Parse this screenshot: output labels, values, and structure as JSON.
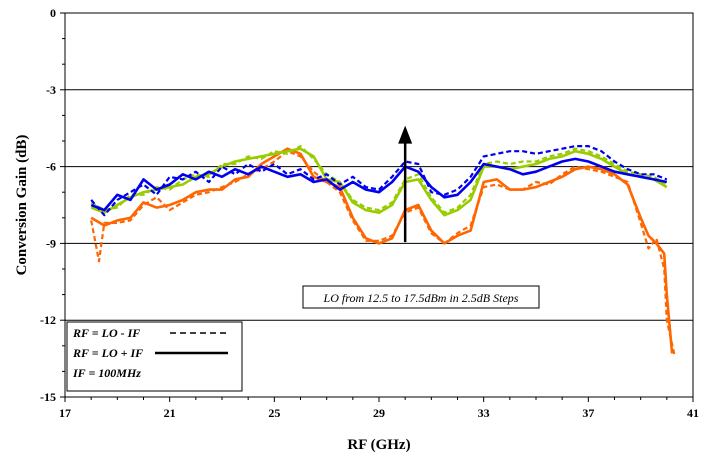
{
  "chart_data": {
    "type": "line",
    "xlabel": "RF (GHz)",
    "ylabel": "Conversion Gain (dB)",
    "xlim": [
      17,
      41
    ],
    "ylim": [
      -15,
      0
    ],
    "x_ticks": [
      17,
      21,
      25,
      29,
      33,
      37,
      41
    ],
    "y_ticks": [
      0,
      -3,
      -6,
      -9,
      -12,
      -15
    ],
    "grid": "horizontal major lines",
    "annotation": "LO from 12.5 to 17.5dBm in 2.5dB Steps",
    "arrow": {
      "x": 30,
      "y_from": -8.95,
      "y_to": -4.4
    },
    "legend": {
      "position": "bottom-left",
      "entries": [
        "RF = LO - IF",
        "RF = LO + IF",
        "IF = 100MHz"
      ]
    },
    "colors": {
      "orange": "#ff6600",
      "green": "#99cc00",
      "blue": "#0000ee"
    },
    "series": [
      {
        "color": "orange",
        "style": "solid",
        "points": [
          [
            18,
            -8.0
          ],
          [
            18.5,
            -8.3
          ],
          [
            19,
            -8.1
          ],
          [
            19.5,
            -8.0
          ],
          [
            20,
            -7.4
          ],
          [
            20.5,
            -7.6
          ],
          [
            21,
            -7.5
          ],
          [
            21.5,
            -7.3
          ],
          [
            22,
            -7.0
          ],
          [
            22.5,
            -6.9
          ],
          [
            23,
            -6.9
          ],
          [
            23.5,
            -6.5
          ],
          [
            24,
            -6.4
          ],
          [
            24.5,
            -5.9
          ],
          [
            25,
            -5.6
          ],
          [
            25.5,
            -5.3
          ],
          [
            26,
            -5.5
          ],
          [
            26.5,
            -6.4
          ],
          [
            27,
            -6.6
          ],
          [
            27.5,
            -6.8
          ],
          [
            28,
            -8.0
          ],
          [
            28.5,
            -8.8
          ],
          [
            29,
            -9.0
          ],
          [
            29.5,
            -8.8
          ],
          [
            30,
            -7.7
          ],
          [
            30.5,
            -7.5
          ],
          [
            31,
            -8.5
          ],
          [
            31.5,
            -9.0
          ],
          [
            32,
            -8.7
          ],
          [
            32.5,
            -8.5
          ],
          [
            33,
            -6.6
          ],
          [
            33.5,
            -6.5
          ],
          [
            34,
            -6.9
          ],
          [
            34.5,
            -6.9
          ],
          [
            35,
            -6.8
          ],
          [
            35.5,
            -6.6
          ],
          [
            36,
            -6.4
          ],
          [
            36.5,
            -6.1
          ],
          [
            37,
            -6.0
          ],
          [
            37.5,
            -6.1
          ],
          [
            38,
            -6.3
          ],
          [
            38.5,
            -6.7
          ],
          [
            39,
            -8.0
          ],
          [
            39.3,
            -8.7
          ],
          [
            39.6,
            -9.0
          ],
          [
            39.9,
            -9.4
          ],
          [
            40,
            -11.0
          ],
          [
            40.2,
            -13.3
          ]
        ]
      },
      {
        "color": "orange",
        "style": "dashed",
        "points": [
          [
            18,
            -8.1
          ],
          [
            18.3,
            -9.7
          ],
          [
            18.5,
            -8.2
          ],
          [
            19,
            -8.2
          ],
          [
            19.5,
            -8.1
          ],
          [
            20,
            -7.5
          ],
          [
            20.5,
            -7.2
          ],
          [
            21,
            -7.7
          ],
          [
            21.5,
            -7.4
          ],
          [
            22,
            -7.1
          ],
          [
            22.5,
            -7.0
          ],
          [
            23,
            -6.8
          ],
          [
            23.5,
            -6.6
          ],
          [
            24,
            -6.3
          ],
          [
            24.5,
            -6.1
          ],
          [
            25,
            -5.8
          ],
          [
            25.5,
            -5.4
          ],
          [
            26,
            -5.6
          ],
          [
            26.5,
            -6.2
          ],
          [
            27,
            -6.6
          ],
          [
            27.5,
            -7.0
          ],
          [
            28,
            -8.1
          ],
          [
            28.5,
            -8.9
          ],
          [
            29,
            -8.9
          ],
          [
            29.5,
            -8.7
          ],
          [
            30,
            -7.8
          ],
          [
            30.5,
            -7.6
          ],
          [
            31,
            -8.6
          ],
          [
            31.5,
            -9.0
          ],
          [
            32,
            -8.6
          ],
          [
            32.5,
            -8.3
          ],
          [
            33,
            -6.8
          ],
          [
            33.5,
            -6.7
          ],
          [
            34,
            -6.9
          ],
          [
            34.5,
            -6.9
          ],
          [
            35,
            -6.6
          ],
          [
            35.5,
            -6.7
          ],
          [
            36,
            -6.3
          ],
          [
            36.5,
            -6.0
          ],
          [
            37,
            -6.1
          ],
          [
            37.5,
            -6.2
          ],
          [
            38,
            -6.4
          ],
          [
            38.5,
            -6.6
          ],
          [
            39,
            -8.2
          ],
          [
            39.3,
            -9.2
          ],
          [
            39.6,
            -8.8
          ],
          [
            39.9,
            -10.0
          ],
          [
            40,
            -12.0
          ],
          [
            40.3,
            -13.4
          ]
        ]
      },
      {
        "color": "green",
        "style": "solid",
        "points": [
          [
            18,
            -7.6
          ],
          [
            18.5,
            -7.8
          ],
          [
            19,
            -7.5
          ],
          [
            19.5,
            -7.2
          ],
          [
            20,
            -7.0
          ],
          [
            20.5,
            -6.9
          ],
          [
            21,
            -6.8
          ],
          [
            21.5,
            -6.7
          ],
          [
            22,
            -6.4
          ],
          [
            22.5,
            -6.3
          ],
          [
            23,
            -6.0
          ],
          [
            23.5,
            -5.8
          ],
          [
            24,
            -5.7
          ],
          [
            24.5,
            -5.6
          ],
          [
            25,
            -5.5
          ],
          [
            25.5,
            -5.4
          ],
          [
            26,
            -5.3
          ],
          [
            26.5,
            -5.6
          ],
          [
            27,
            -6.5
          ],
          [
            27.5,
            -6.6
          ],
          [
            28,
            -7.4
          ],
          [
            28.5,
            -7.7
          ],
          [
            29,
            -7.8
          ],
          [
            29.5,
            -7.5
          ],
          [
            30,
            -6.6
          ],
          [
            30.5,
            -6.5
          ],
          [
            31,
            -7.3
          ],
          [
            31.5,
            -7.9
          ],
          [
            32,
            -7.7
          ],
          [
            32.5,
            -7.3
          ],
          [
            33,
            -6.0
          ],
          [
            33.5,
            -6.0
          ],
          [
            34,
            -6.1
          ],
          [
            34.5,
            -6.0
          ],
          [
            35,
            -5.9
          ],
          [
            35.5,
            -5.7
          ],
          [
            36,
            -5.6
          ],
          [
            36.5,
            -5.4
          ],
          [
            37,
            -5.5
          ],
          [
            37.5,
            -5.7
          ],
          [
            38,
            -6.0
          ],
          [
            38.5,
            -6.3
          ],
          [
            39,
            -6.4
          ],
          [
            39.5,
            -6.5
          ],
          [
            40,
            -6.8
          ]
        ]
      },
      {
        "color": "green",
        "style": "dashed",
        "points": [
          [
            18,
            -7.4
          ],
          [
            18.5,
            -7.7
          ],
          [
            19,
            -7.6
          ],
          [
            19.5,
            -7.1
          ],
          [
            20,
            -7.1
          ],
          [
            20.5,
            -6.8
          ],
          [
            21,
            -6.9
          ],
          [
            21.5,
            -6.5
          ],
          [
            22,
            -6.3
          ],
          [
            22.5,
            -6.4
          ],
          [
            23,
            -5.9
          ],
          [
            23.5,
            -5.9
          ],
          [
            24,
            -5.6
          ],
          [
            24.5,
            -5.7
          ],
          [
            25,
            -5.4
          ],
          [
            25.5,
            -5.5
          ],
          [
            26,
            -5.2
          ],
          [
            26.5,
            -5.7
          ],
          [
            27,
            -6.3
          ],
          [
            27.5,
            -6.6
          ],
          [
            28,
            -7.3
          ],
          [
            28.5,
            -7.6
          ],
          [
            29,
            -7.7
          ],
          [
            29.5,
            -7.4
          ],
          [
            30,
            -6.5
          ],
          [
            30.5,
            -6.3
          ],
          [
            31,
            -7.2
          ],
          [
            31.5,
            -7.8
          ],
          [
            32,
            -7.6
          ],
          [
            32.5,
            -7.1
          ],
          [
            33,
            -5.9
          ],
          [
            33.5,
            -5.8
          ],
          [
            34,
            -5.9
          ],
          [
            34.5,
            -5.8
          ],
          [
            35,
            -5.8
          ],
          [
            35.5,
            -5.6
          ],
          [
            36,
            -5.5
          ],
          [
            36.5,
            -5.3
          ],
          [
            37,
            -5.4
          ],
          [
            37.5,
            -5.6
          ],
          [
            38,
            -5.9
          ],
          [
            38.5,
            -6.2
          ],
          [
            39,
            -6.3
          ],
          [
            39.5,
            -6.4
          ],
          [
            40,
            -6.7
          ]
        ]
      },
      {
        "color": "blue",
        "style": "solid",
        "points": [
          [
            18,
            -7.5
          ],
          [
            18.5,
            -7.7
          ],
          [
            19,
            -7.1
          ],
          [
            19.5,
            -7.3
          ],
          [
            20,
            -6.5
          ],
          [
            20.5,
            -6.9
          ],
          [
            21,
            -6.7
          ],
          [
            21.5,
            -6.3
          ],
          [
            22,
            -6.5
          ],
          [
            22.5,
            -6.2
          ],
          [
            23,
            -6.4
          ],
          [
            23.5,
            -6.1
          ],
          [
            24,
            -6.3
          ],
          [
            24.5,
            -6.0
          ],
          [
            25,
            -6.2
          ],
          [
            25.5,
            -6.4
          ],
          [
            26,
            -6.3
          ],
          [
            26.5,
            -6.6
          ],
          [
            27,
            -6.5
          ],
          [
            27.5,
            -6.9
          ],
          [
            28,
            -6.6
          ],
          [
            28.5,
            -6.9
          ],
          [
            29,
            -7.0
          ],
          [
            29.5,
            -6.6
          ],
          [
            30,
            -6.0
          ],
          [
            30.5,
            -6.2
          ],
          [
            31,
            -6.8
          ],
          [
            31.5,
            -7.2
          ],
          [
            32,
            -7.1
          ],
          [
            32.5,
            -6.6
          ],
          [
            33,
            -5.9
          ],
          [
            33.5,
            -6.0
          ],
          [
            34,
            -6.1
          ],
          [
            34.5,
            -6.3
          ],
          [
            35,
            -6.2
          ],
          [
            35.5,
            -6.0
          ],
          [
            36,
            -5.8
          ],
          [
            36.5,
            -5.7
          ],
          [
            37,
            -5.8
          ],
          [
            37.5,
            -6.0
          ],
          [
            38,
            -6.2
          ],
          [
            38.5,
            -6.3
          ],
          [
            39,
            -6.4
          ],
          [
            39.5,
            -6.5
          ],
          [
            40,
            -6.6
          ]
        ]
      },
      {
        "color": "blue",
        "style": "dashed",
        "points": [
          [
            18,
            -7.3
          ],
          [
            18.5,
            -7.9
          ],
          [
            19,
            -7.3
          ],
          [
            19.5,
            -7.0
          ],
          [
            20,
            -6.7
          ],
          [
            20.5,
            -7.1
          ],
          [
            21,
            -6.4
          ],
          [
            21.5,
            -6.5
          ],
          [
            22,
            -6.2
          ],
          [
            22.5,
            -6.6
          ],
          [
            23,
            -6.0
          ],
          [
            23.5,
            -6.3
          ],
          [
            24,
            -5.9
          ],
          [
            24.5,
            -6.2
          ],
          [
            25,
            -5.9
          ],
          [
            25.5,
            -6.3
          ],
          [
            26,
            -6.1
          ],
          [
            26.5,
            -6.5
          ],
          [
            27,
            -6.3
          ],
          [
            27.5,
            -6.7
          ],
          [
            28,
            -6.4
          ],
          [
            28.5,
            -6.8
          ],
          [
            29,
            -6.9
          ],
          [
            29.5,
            -6.4
          ],
          [
            30,
            -5.8
          ],
          [
            30.5,
            -5.9
          ],
          [
            31,
            -7.0
          ],
          [
            31.5,
            -7.1
          ],
          [
            32,
            -6.9
          ],
          [
            32.5,
            -6.4
          ],
          [
            33,
            -5.6
          ],
          [
            33.5,
            -5.5
          ],
          [
            34,
            -5.4
          ],
          [
            34.5,
            -5.4
          ],
          [
            35,
            -5.5
          ],
          [
            35.5,
            -5.4
          ],
          [
            36,
            -5.3
          ],
          [
            36.5,
            -5.2
          ],
          [
            37,
            -5.2
          ],
          [
            37.5,
            -5.4
          ],
          [
            38,
            -5.8
          ],
          [
            38.5,
            -6.1
          ],
          [
            39,
            -6.3
          ],
          [
            39.5,
            -6.3
          ],
          [
            40,
            -6.5
          ]
        ]
      }
    ]
  }
}
